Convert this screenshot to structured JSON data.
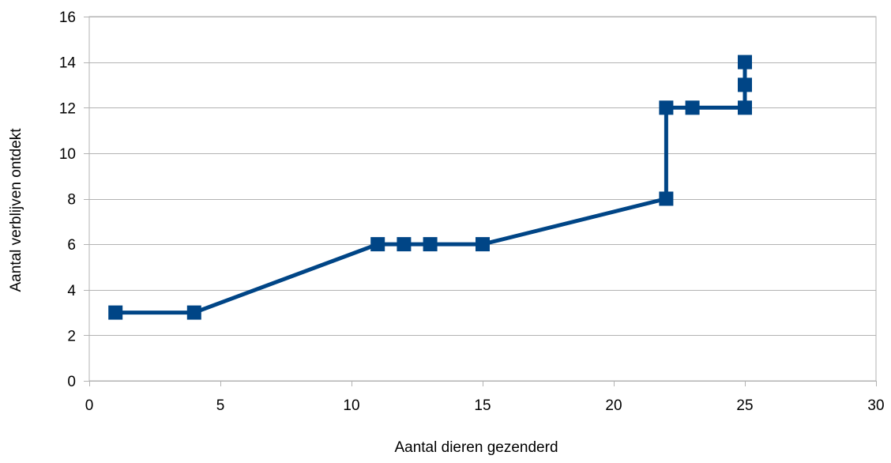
{
  "chart_data": {
    "type": "line",
    "title": "",
    "xlabel": "Aantal dieren gezenderd",
    "ylabel": "Aantal verblijven ontdekt",
    "xlim": [
      0,
      30
    ],
    "ylim": [
      0,
      16
    ],
    "xticks": [
      0,
      5,
      10,
      15,
      20,
      25,
      30
    ],
    "yticks": [
      0,
      2,
      4,
      6,
      8,
      10,
      12,
      14,
      16
    ],
    "grid": "horizontal",
    "legend": "none",
    "series": [
      {
        "x": [
          1,
          4,
          11,
          12,
          13,
          15,
          22,
          22,
          23,
          25,
          25,
          25
        ],
        "y": [
          3,
          3,
          6,
          6,
          6,
          6,
          8,
          12,
          12,
          12,
          13,
          14
        ],
        "marker": "square",
        "color": "#004586"
      }
    ]
  }
}
